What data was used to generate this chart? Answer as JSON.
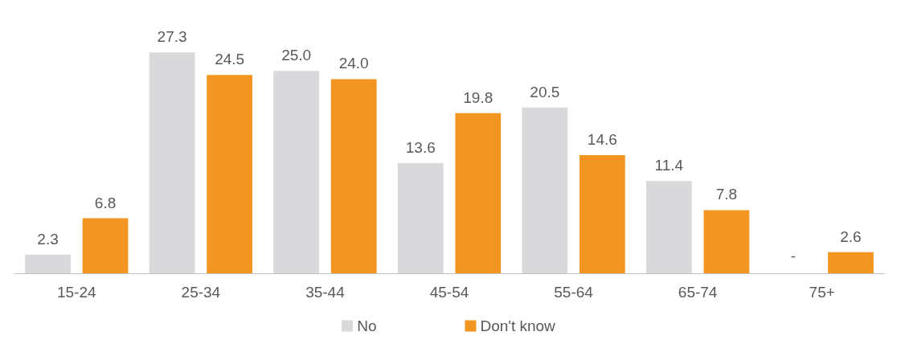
{
  "chart_data": {
    "type": "bar",
    "categories": [
      "15-24",
      "25-34",
      "35-44",
      "45-54",
      "55-64",
      "65-74",
      "75+"
    ],
    "series": [
      {
        "name": "No",
        "color": "#d9d9db",
        "values": [
          2.3,
          27.3,
          25.0,
          13.6,
          20.5,
          11.4,
          null
        ],
        "value_labels": [
          "2.3",
          "27.3",
          "25.0",
          "13.6",
          "20.5",
          "11.4",
          "-"
        ]
      },
      {
        "name": "Don't know",
        "color": "#f39621",
        "values": [
          6.8,
          24.5,
          24.0,
          19.8,
          14.6,
          7.8,
          2.6
        ],
        "value_labels": [
          "6.8",
          "24.5",
          "24.0",
          "19.8",
          "14.6",
          "7.8",
          "2.6"
        ]
      }
    ],
    "legend": "bottom"
  }
}
